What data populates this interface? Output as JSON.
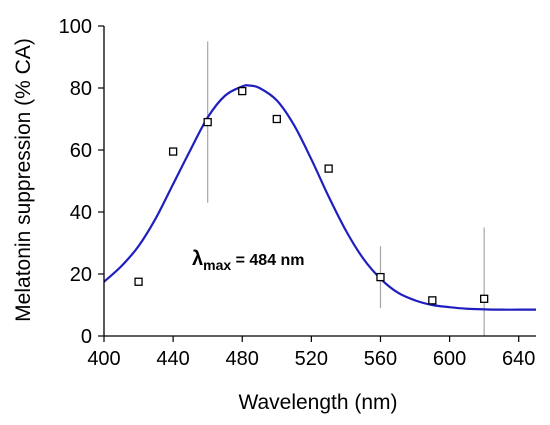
{
  "chart_data": {
    "type": "scatter",
    "xlabel": "Wavelength (nm)",
    "ylabel": "Melatonin suppression (% CA)",
    "xlim": [
      400,
      650
    ],
    "ylim": [
      0,
      100
    ],
    "x_ticks": [
      400,
      440,
      480,
      520,
      560,
      600,
      640
    ],
    "y_ticks": [
      0,
      20,
      40,
      60,
      80,
      100
    ],
    "grid": false,
    "annotation": {
      "lambda": "λ",
      "subscript": "max",
      "text": " = 484 nm"
    },
    "points": [
      {
        "x": 420,
        "y": 17.5
      },
      {
        "x": 440,
        "y": 59.5
      },
      {
        "x": 460,
        "y": 69,
        "err_low": 43,
        "err_high": 95
      },
      {
        "x": 480,
        "y": 79
      },
      {
        "x": 500,
        "y": 70
      },
      {
        "x": 530,
        "y": 54
      },
      {
        "x": 560,
        "y": 19,
        "err_low": 9,
        "err_high": 29
      },
      {
        "x": 590,
        "y": 11.5
      },
      {
        "x": 620,
        "y": 12,
        "err_low": 0,
        "err_high": 35
      }
    ],
    "fit_curve": {
      "x": [
        400,
        410,
        420,
        430,
        440,
        450,
        460,
        470,
        480,
        484,
        490,
        500,
        510,
        520,
        530,
        540,
        550,
        560,
        570,
        580,
        590,
        600,
        610,
        620,
        630,
        640,
        650
      ],
      "y": [
        17.5,
        22.5,
        29,
        38,
        49,
        60,
        70.5,
        77.5,
        80.5,
        80.8,
        80,
        76,
        68,
        57,
        45,
        34,
        25,
        18.5,
        14,
        11.5,
        10,
        9.3,
        8.8,
        8.6,
        8.5,
        8.5,
        8.5
      ]
    },
    "colors": {
      "curve": "#1f1fbf",
      "markers": "#000000",
      "error_bars": "#a6a6a6"
    }
  }
}
